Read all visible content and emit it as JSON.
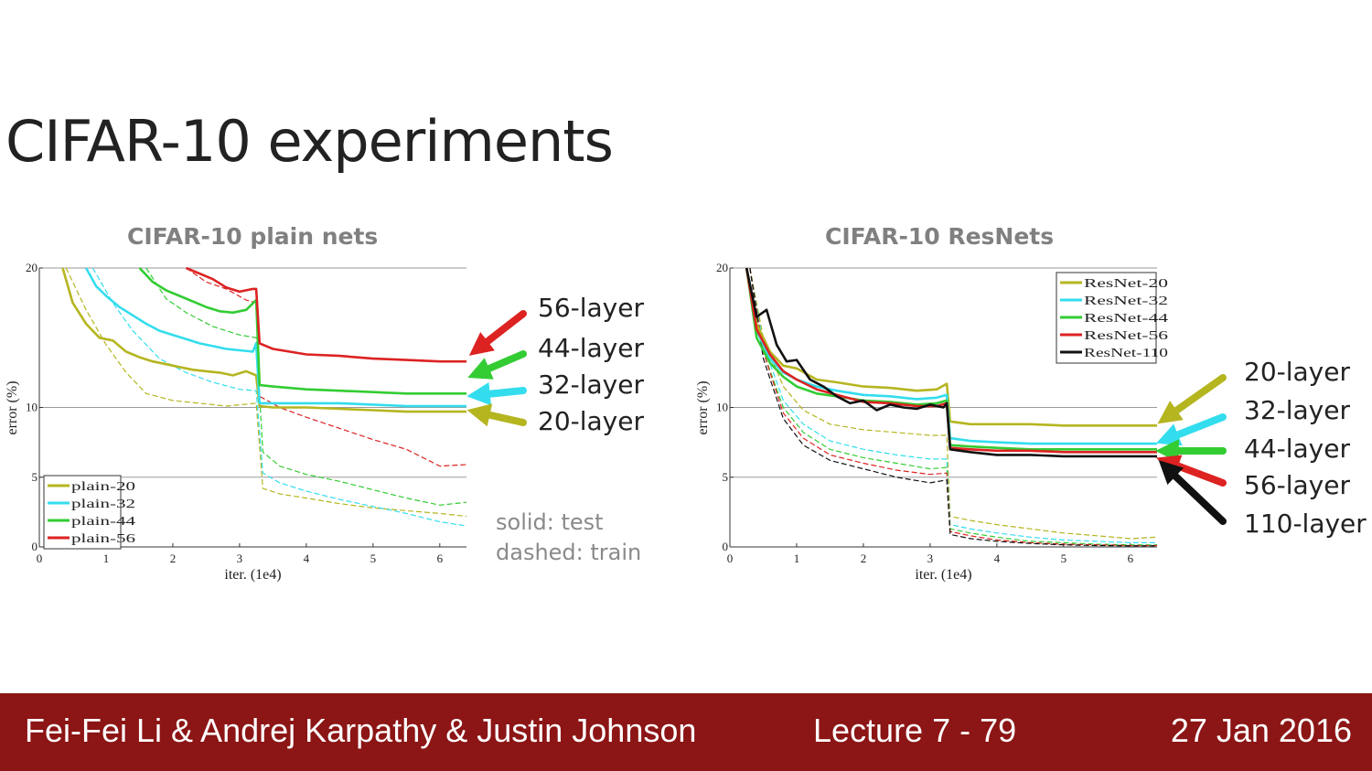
{
  "slide": {
    "title": "CIFAR-10 experiments",
    "note_solid": "solid: test",
    "note_dashed": "dashed: train",
    "footer": {
      "authors": "Fei-Fei Li & Andrej Karpathy & Justin Johnson",
      "lecture": "Lecture 7 - 79",
      "date": "27 Jan 2016",
      "bg_color": "#8c1515"
    }
  },
  "chart_data": [
    {
      "type": "line",
      "title": "CIFAR-10 plain nets",
      "xlabel": "iter. (1e4)",
      "ylabel": "error (%)",
      "xlim": [
        0,
        6.4
      ],
      "ylim": [
        0,
        20
      ],
      "xticks": [
        0,
        1,
        2,
        3,
        4,
        5,
        6
      ],
      "yticks": [
        0,
        5,
        10,
        20
      ],
      "gridlines_y": [
        5,
        10,
        20
      ],
      "legend_position": "bottom-left",
      "series": [
        {
          "name": "plain-20",
          "color": "#b5b520",
          "style": "solid",
          "x": [
            0.35,
            0.5,
            0.7,
            0.9,
            1.1,
            1.3,
            1.5,
            1.7,
            1.9,
            2.1,
            2.3,
            2.5,
            2.7,
            2.9,
            3.1,
            3.25,
            3.3,
            3.5,
            4,
            4.5,
            5,
            5.5,
            6,
            6.4
          ],
          "y": [
            20,
            17.5,
            16,
            15,
            14.8,
            14,
            13.6,
            13.3,
            13.1,
            12.9,
            12.7,
            12.6,
            12.5,
            12.3,
            12.6,
            12.3,
            10.1,
            10,
            10,
            9.9,
            9.8,
            9.7,
            9.7,
            9.7
          ]
        },
        {
          "name": "plain-32",
          "color": "#33ddee",
          "style": "solid",
          "x": [
            0.7,
            0.85,
            1,
            1.2,
            1.4,
            1.6,
            1.8,
            2,
            2.2,
            2.4,
            2.6,
            2.8,
            3,
            3.2,
            3.25,
            3.3,
            3.5,
            4,
            4.5,
            5,
            5.5,
            6,
            6.4
          ],
          "y": [
            20,
            18.7,
            18,
            17.2,
            16.6,
            16,
            15.5,
            15.2,
            14.9,
            14.6,
            14.4,
            14.2,
            14.1,
            14,
            14.6,
            10.3,
            10.3,
            10.3,
            10.3,
            10.2,
            10.1,
            10.1,
            10.1
          ]
        },
        {
          "name": "plain-44",
          "color": "#33cc33",
          "style": "solid",
          "x": [
            1.5,
            1.7,
            1.9,
            2.1,
            2.3,
            2.5,
            2.7,
            2.9,
            3.1,
            3.25,
            3.3,
            3.5,
            4,
            4.5,
            5,
            5.5,
            6,
            6.4
          ],
          "y": [
            20,
            19,
            18.4,
            18,
            17.6,
            17.2,
            16.9,
            16.8,
            17,
            17.7,
            11.6,
            11.5,
            11.3,
            11.2,
            11.1,
            11,
            11,
            11
          ]
        },
        {
          "name": "plain-56",
          "color": "#dd2222",
          "style": "solid",
          "x": [
            2.2,
            2.4,
            2.6,
            2.8,
            3,
            3.2,
            3.25,
            3.3,
            3.5,
            4,
            4.5,
            5,
            5.5,
            6,
            6.4
          ],
          "y": [
            20,
            19.6,
            19.2,
            18.6,
            18.3,
            18.5,
            18.5,
            14.6,
            14.2,
            13.8,
            13.7,
            13.5,
            13.4,
            13.3,
            13.3
          ]
        },
        {
          "name": "plain-20 train",
          "color": "#b5b520",
          "style": "dashed",
          "x": [
            0.4,
            0.7,
            1,
            1.3,
            1.6,
            2,
            2.4,
            2.8,
            3.25,
            3.35,
            3.6,
            4,
            4.5,
            5,
            5.5,
            6,
            6.4
          ],
          "y": [
            20,
            17,
            14.5,
            12.5,
            11,
            10.5,
            10.3,
            10.1,
            10.3,
            4.2,
            3.8,
            3.5,
            3.1,
            2.8,
            2.6,
            2.4,
            2.2
          ]
        },
        {
          "name": "plain-32 train",
          "color": "#33ddee",
          "style": "dashed",
          "x": [
            0.8,
            1.1,
            1.4,
            1.8,
            2.2,
            2.6,
            3,
            3.25,
            3.35,
            3.6,
            4,
            4.5,
            5,
            5.5,
            6,
            6.4
          ],
          "y": [
            20,
            17.5,
            15.5,
            13.5,
            12.5,
            11.8,
            11.3,
            11.2,
            5.3,
            4.6,
            4,
            3.4,
            2.9,
            2.4,
            1.8,
            1.5
          ]
        },
        {
          "name": "plain-44 train",
          "color": "#33cc33",
          "style": "dashed",
          "x": [
            1.6,
            1.9,
            2.2,
            2.6,
            3,
            3.25,
            3.35,
            3.6,
            4,
            4.5,
            5,
            5.5,
            6,
            6.4
          ],
          "y": [
            20,
            17.8,
            16.8,
            15.8,
            15.2,
            15,
            6.8,
            5.8,
            5.2,
            4.7,
            4.1,
            3.5,
            3,
            3.2
          ]
        },
        {
          "name": "plain-56 train",
          "color": "#dd2222",
          "style": "dashed",
          "x": [
            2.2,
            2.5,
            2.8,
            3.1,
            3.25,
            3.3,
            3.6,
            4,
            4.5,
            5,
            5.5,
            6,
            6.4
          ],
          "y": [
            20,
            19,
            18.5,
            17.7,
            17.5,
            10.8,
            10,
            9.3,
            8.5,
            7.7,
            7,
            5.8,
            5.9
          ]
        }
      ],
      "annotations": [
        {
          "label": "56-layer",
          "color": "#dd2222"
        },
        {
          "label": "44-layer",
          "color": "#33cc33"
        },
        {
          "label": "32-layer",
          "color": "#33ddee"
        },
        {
          "label": "20-layer",
          "color": "#b5b520"
        }
      ]
    },
    {
      "type": "line",
      "title": "CIFAR-10 ResNets",
      "xlabel": "iter. (1e4)",
      "ylabel": "error (%)",
      "xlim": [
        0,
        6.4
      ],
      "ylim": [
        0,
        20
      ],
      "xticks": [
        0,
        1,
        2,
        3,
        4,
        5,
        6
      ],
      "yticks": [
        0,
        5,
        10,
        20
      ],
      "gridlines_y": [
        5,
        10,
        20
      ],
      "legend_position": "top-right",
      "series": [
        {
          "name": "ResNet-20",
          "color": "#b5b520",
          "style": "solid",
          "x": [
            0.25,
            0.4,
            0.6,
            0.8,
            1,
            1.3,
            1.6,
            2,
            2.4,
            2.8,
            3.1,
            3.25,
            3.3,
            3.6,
            4,
            4.5,
            5,
            5.5,
            6,
            6.4
          ],
          "y": [
            20,
            16,
            14,
            13,
            12.8,
            12,
            11.8,
            11.5,
            11.4,
            11.2,
            11.3,
            11.7,
            9,
            8.8,
            8.8,
            8.8,
            8.7,
            8.7,
            8.7,
            8.7
          ]
        },
        {
          "name": "ResNet-32",
          "color": "#33ddee",
          "style": "solid",
          "x": [
            0.25,
            0.4,
            0.6,
            0.8,
            1,
            1.3,
            1.6,
            2,
            2.4,
            2.8,
            3.1,
            3.25,
            3.3,
            3.6,
            4,
            4.5,
            5,
            5.5,
            6,
            6.4
          ],
          "y": [
            20,
            15.5,
            13.5,
            12.5,
            12,
            11.5,
            11.2,
            10.9,
            10.8,
            10.6,
            10.7,
            10.9,
            7.8,
            7.6,
            7.5,
            7.4,
            7.4,
            7.4,
            7.4,
            7.4
          ]
        },
        {
          "name": "ResNet-44",
          "color": "#33cc33",
          "style": "solid",
          "x": [
            0.25,
            0.4,
            0.6,
            0.8,
            1,
            1.3,
            1.6,
            2,
            2.4,
            2.8,
            3.1,
            3.25,
            3.3,
            3.6,
            4,
            4.5,
            5,
            5.5,
            6,
            6.4
          ],
          "y": [
            20,
            15,
            13.2,
            12.2,
            11.5,
            11,
            10.8,
            10.5,
            10.4,
            10.2,
            10.3,
            10.5,
            7.3,
            7.2,
            7.1,
            7,
            7,
            7,
            7,
            7
          ]
        },
        {
          "name": "ResNet-56",
          "color": "#dd2222",
          "style": "solid",
          "x": [
            0.25,
            0.4,
            0.6,
            0.8,
            1,
            1.3,
            1.6,
            2,
            2.4,
            2.8,
            3.1,
            3.25,
            3.3,
            3.6,
            4,
            4.5,
            5,
            5.5,
            6,
            6.4
          ],
          "y": [
            20,
            15.6,
            13.8,
            12.6,
            12,
            11.3,
            10.9,
            10.4,
            10.3,
            10.1,
            10.1,
            10.3,
            7.1,
            7,
            6.9,
            6.9,
            6.8,
            6.8,
            6.8,
            6.8
          ]
        },
        {
          "name": "ResNet-110",
          "color": "#111111",
          "style": "solid",
          "x": [
            0.25,
            0.4,
            0.55,
            0.7,
            0.85,
            1,
            1.2,
            1.4,
            1.6,
            1.8,
            2,
            2.2,
            2.4,
            2.6,
            2.8,
            3,
            3.2,
            3.25,
            3.3,
            3.6,
            4,
            4.5,
            5,
            5.5,
            6,
            6.4
          ],
          "y": [
            20,
            16.5,
            17,
            14.5,
            13.3,
            13.4,
            12,
            11.5,
            10.8,
            10.3,
            10.5,
            9.8,
            10.2,
            10,
            9.9,
            10.2,
            10,
            10.3,
            7,
            6.8,
            6.6,
            6.6,
            6.5,
            6.5,
            6.5,
            6.5
          ]
        },
        {
          "name": "ResNet-20 train",
          "color": "#b5b520",
          "style": "dashed",
          "x": [
            0.3,
            0.5,
            0.8,
            1.1,
            1.5,
            2,
            2.5,
            3,
            3.25,
            3.3,
            3.6,
            4,
            4.5,
            5,
            5.5,
            6,
            6.4
          ],
          "y": [
            20,
            15,
            11.5,
            9.8,
            8.8,
            8.4,
            8.2,
            8,
            8,
            2.2,
            1.9,
            1.6,
            1.3,
            1,
            0.8,
            0.6,
            0.7
          ]
        },
        {
          "name": "ResNet-32 train",
          "color": "#33ddee",
          "style": "dashed",
          "x": [
            0.3,
            0.5,
            0.8,
            1.1,
            1.5,
            2,
            2.5,
            3,
            3.25,
            3.3,
            3.6,
            4,
            4.5,
            5,
            5.5,
            6,
            6.4
          ],
          "y": [
            20,
            14.5,
            10.5,
            8.8,
            7.6,
            7,
            6.6,
            6.3,
            6.3,
            1.6,
            1.3,
            1,
            0.7,
            0.5,
            0.4,
            0.3,
            0.3
          ]
        },
        {
          "name": "ResNet-44 train",
          "color": "#33cc33",
          "style": "dashed",
          "x": [
            0.3,
            0.5,
            0.8,
            1.1,
            1.5,
            2,
            2.5,
            3,
            3.25,
            3.3,
            3.6,
            4,
            4.5,
            5,
            5.5,
            6,
            6.4
          ],
          "y": [
            20,
            14,
            10,
            8.2,
            7,
            6.4,
            6,
            5.6,
            5.7,
            1.3,
            1,
            0.7,
            0.4,
            0.3,
            0.2,
            0.15,
            0.15
          ]
        },
        {
          "name": "ResNet-56 train",
          "color": "#dd2222",
          "style": "dashed",
          "x": [
            0.3,
            0.5,
            0.8,
            1.1,
            1.5,
            2,
            2.5,
            3,
            3.25,
            3.3,
            3.6,
            4,
            4.5,
            5,
            5.5,
            6,
            6.4
          ],
          "y": [
            20,
            14,
            9.6,
            7.8,
            6.6,
            6,
            5.5,
            5.2,
            5.3,
            1.1,
            0.8,
            0.5,
            0.3,
            0.2,
            0.15,
            0.1,
            0.1
          ]
        },
        {
          "name": "ResNet-110 train",
          "color": "#111111",
          "style": "dashed",
          "x": [
            0.3,
            0.5,
            0.8,
            1.1,
            1.5,
            2,
            2.5,
            3,
            3.25,
            3.3,
            3.6,
            4,
            4.5,
            5,
            5.5,
            6,
            6.4
          ],
          "y": [
            20,
            13.5,
            9.2,
            7.3,
            6.2,
            5.6,
            5,
            4.6,
            4.8,
            0.9,
            0.6,
            0.4,
            0.25,
            0.15,
            0.1,
            0.08,
            0.08
          ]
        }
      ],
      "annotations": [
        {
          "label": "20-layer",
          "color": "#b5b520"
        },
        {
          "label": "32-layer",
          "color": "#33ddee"
        },
        {
          "label": "44-layer",
          "color": "#33cc33"
        },
        {
          "label": "56-layer",
          "color": "#dd2222"
        },
        {
          "label": "110-layer",
          "color": "#111111"
        }
      ]
    }
  ]
}
